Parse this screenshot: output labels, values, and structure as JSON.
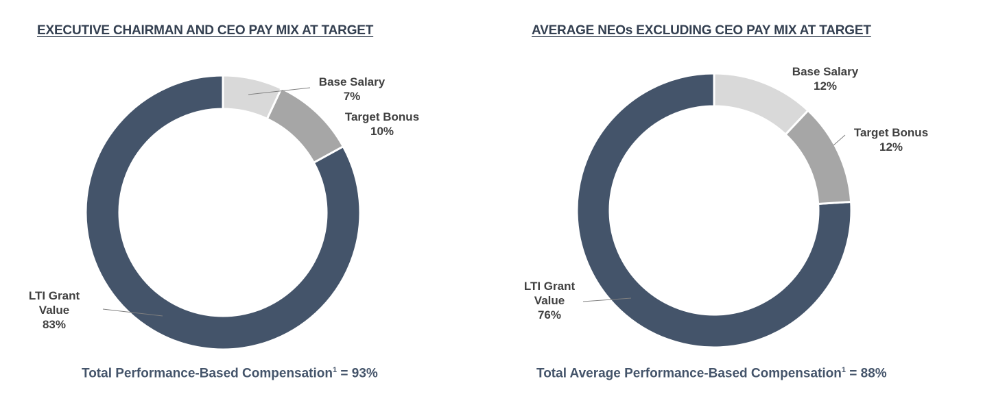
{
  "chart_data": [
    {
      "type": "pie",
      "donut": true,
      "title": "EXECUTIVE CHAIRMAN AND CEO PAY MIX AT TARGET",
      "footer": {
        "text": "Total Performance-Based Compensation",
        "superscript": "1",
        "value": " = 93%"
      },
      "slices": [
        {
          "label": "Base Salary",
          "value": 7,
          "value_label": "7%",
          "color": "#d9d9d9"
        },
        {
          "label": "Target Bonus",
          "value": 10,
          "value_label": "10%",
          "color": "#a6a6a6"
        },
        {
          "label": "LTI Grant Value",
          "label_lines": [
            "LTI Grant",
            "Value"
          ],
          "value": 83,
          "value_label": "83%",
          "color": "#44546a"
        }
      ]
    },
    {
      "type": "pie",
      "donut": true,
      "title": "AVERAGE NEOs EXCLUDING CEO PAY MIX AT TARGET",
      "footer": {
        "text": "Total Average Performance-Based Compensation",
        "superscript": "1",
        "value": " = 88%"
      },
      "slices": [
        {
          "label": "Base Salary",
          "value": 12,
          "value_label": "12%",
          "color": "#d9d9d9"
        },
        {
          "label": "Target Bonus",
          "value": 12,
          "value_label": "12%",
          "color": "#a6a6a6"
        },
        {
          "label": "LTI Grant Value",
          "label_lines": [
            "LTI Grant",
            "Value"
          ],
          "value": 76,
          "value_label": "76%",
          "color": "#44546a"
        }
      ]
    }
  ]
}
